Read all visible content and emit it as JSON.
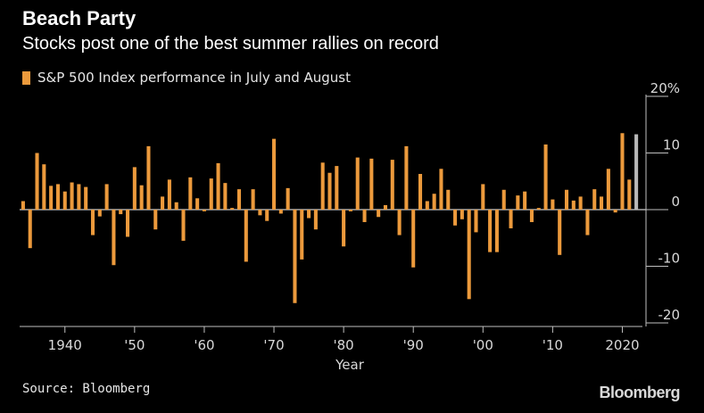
{
  "chart_data": {
    "type": "bar",
    "title": "Beach Party",
    "subtitle": "Stocks post one of the best summer rallies on record",
    "legend": "S&P 500 Index performance in July and August",
    "xlabel": "Year",
    "ylabel": "",
    "ylim": [
      -20,
      20
    ],
    "yticks": [
      "20%",
      "10",
      "0",
      "-10",
      "-20"
    ],
    "ytick_values": [
      20,
      10,
      0,
      -10,
      -20
    ],
    "xtick_labels": [
      "1940",
      "'50",
      "'60",
      "'70",
      "'80",
      "'90",
      "'00",
      "'10",
      "2020"
    ],
    "xtick_years": [
      1940,
      1950,
      1960,
      1970,
      1980,
      1990,
      2000,
      2010,
      2020
    ],
    "x": [
      1934,
      1935,
      1936,
      1937,
      1938,
      1939,
      1940,
      1941,
      1942,
      1943,
      1944,
      1945,
      1946,
      1947,
      1948,
      1949,
      1950,
      1951,
      1952,
      1953,
      1954,
      1955,
      1956,
      1957,
      1958,
      1959,
      1960,
      1961,
      1962,
      1963,
      1964,
      1965,
      1966,
      1967,
      1968,
      1969,
      1970,
      1971,
      1972,
      1973,
      1974,
      1975,
      1976,
      1977,
      1978,
      1979,
      1980,
      1981,
      1982,
      1983,
      1984,
      1985,
      1986,
      1987,
      1988,
      1989,
      1990,
      1991,
      1992,
      1993,
      1994,
      1995,
      1996,
      1997,
      1998,
      1999,
      2000,
      2001,
      2002,
      2003,
      2004,
      2005,
      2006,
      2007,
      2008,
      2009,
      2010,
      2011,
      2012,
      2013,
      2014,
      2015,
      2016,
      2017,
      2018,
      2019,
      2020,
      2021,
      2022
    ],
    "values": [
      1.5,
      -6.8,
      10,
      8,
      4.2,
      4.5,
      3.2,
      4.8,
      4.5,
      4,
      -4.5,
      -1.2,
      4.5,
      -9.8,
      -0.8,
      -4.8,
      7.5,
      4.3,
      11.2,
      -3.5,
      2.3,
      5.3,
      1.3,
      -5.5,
      5.7,
      2,
      -0.3,
      5.5,
      8.2,
      4.7,
      0.3,
      3.6,
      -9.2,
      3.6,
      -1,
      -2,
      12.5,
      -0.7,
      3.8,
      -16.5,
      -8.8,
      -1.5,
      -3.5,
      8.3,
      6.5,
      7.7,
      -6.5,
      -0.3,
      9.2,
      -2.2,
      9,
      -1.3,
      0.8,
      8.8,
      -4.5,
      11.2,
      -10.2,
      6.3,
      1.5,
      2.8,
      7.2,
      3.5,
      -2.8,
      -1.7,
      -15.8,
      -4,
      4.5,
      -7.5,
      -7.5,
      3.5,
      -3.3,
      2.5,
      3.2,
      -2.2,
      0.3,
      11.5,
      1.8,
      -8,
      3.5,
      1.6,
      2.3,
      -4.5,
      3.6,
      2.3,
      7.2,
      -0.5,
      13.5,
      5.3,
      13.3
    ],
    "highlight_year": 2022,
    "colors": {
      "bar": "#ec9a3c",
      "highlight": "#b8b8b8",
      "background": "#000000",
      "grid": "#bfbfbf"
    },
    "source": "Source: Bloomberg",
    "brand": "Bloomberg"
  }
}
